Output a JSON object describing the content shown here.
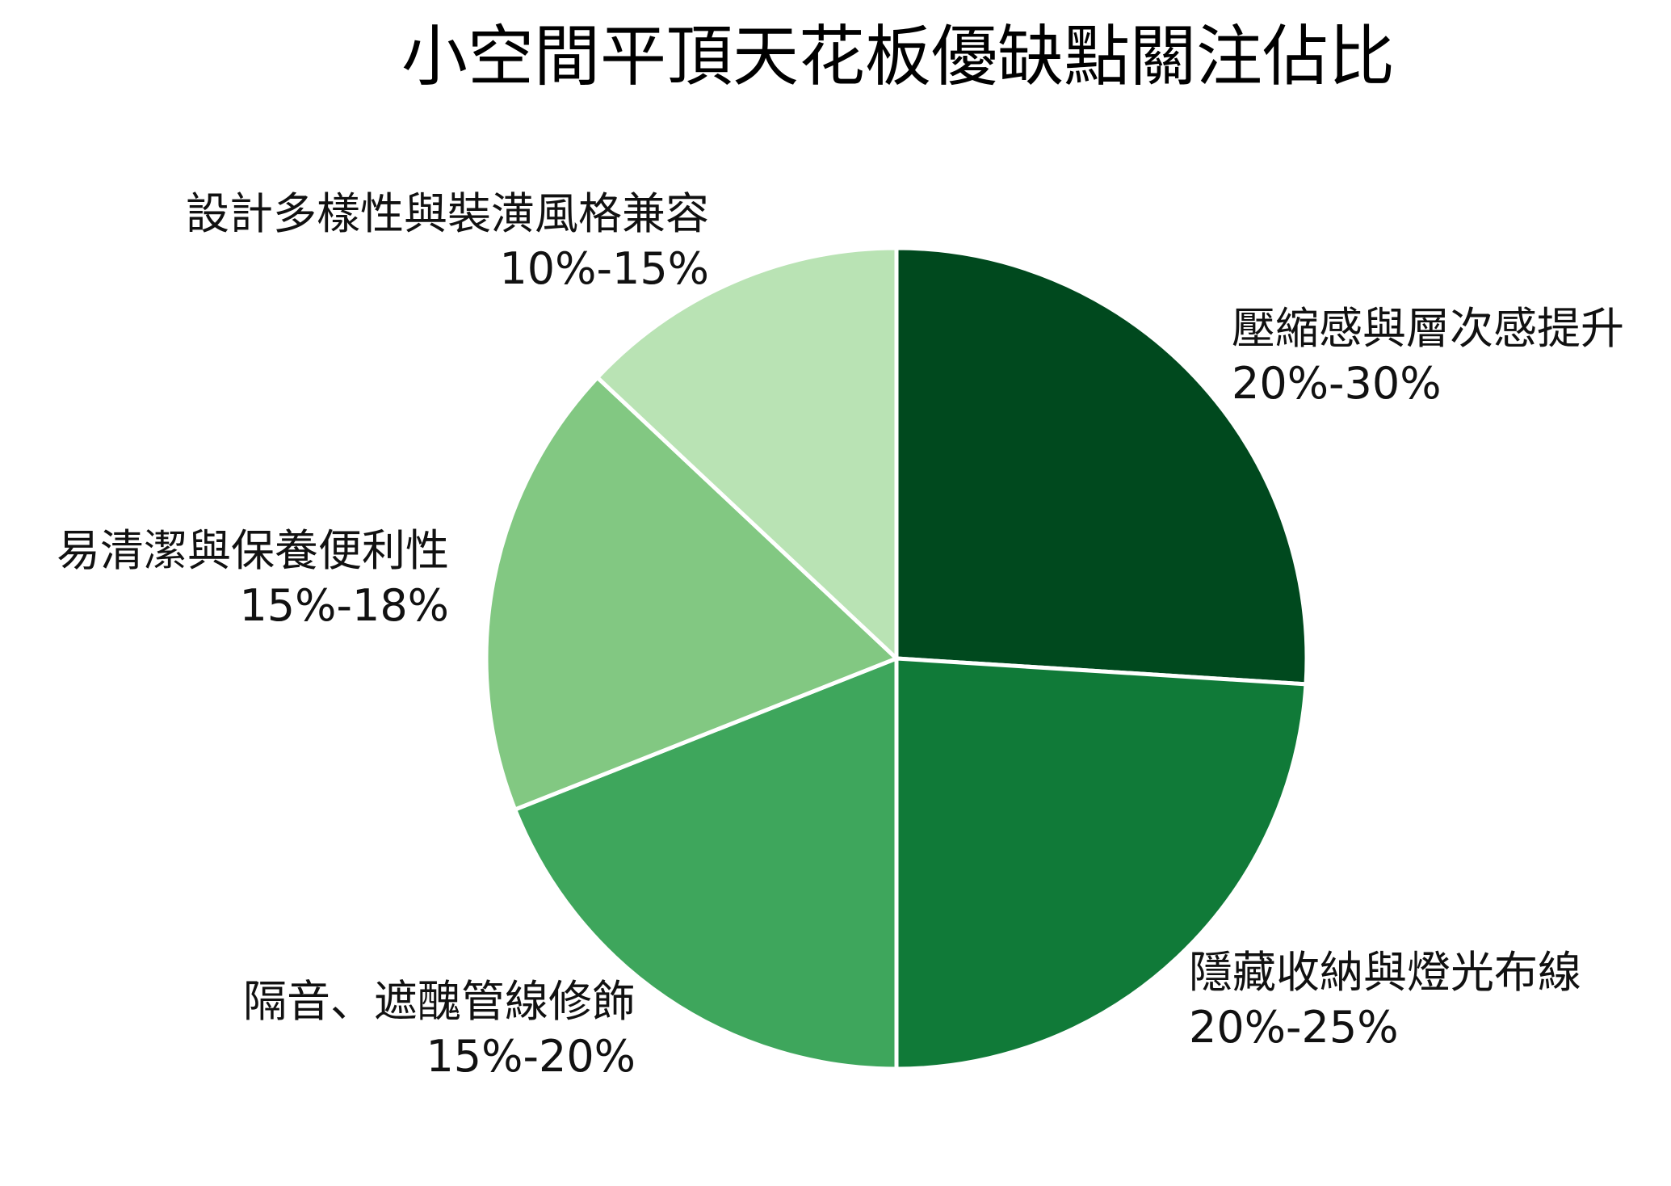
{
  "chart_data": {
    "type": "pie",
    "title": "小空間平頂天花板優缺點關注佔比",
    "slices": [
      {
        "label": "壓縮感與層次感提升",
        "range": "20%-30%",
        "value": 26,
        "color": "#00491e"
      },
      {
        "label": "隱藏收納與燈光布線",
        "range": "20%-25%",
        "value": 24,
        "color": "#107a38"
      },
      {
        "label": "隔音、遮醜管線修飾",
        "range": "15%-20%",
        "value": 19,
        "color": "#3ea65c"
      },
      {
        "label": "易清潔與保養便利性",
        "range": "15%-18%",
        "value": 18,
        "color": "#82c882"
      },
      {
        "label": "設計多樣性與裝潢風格兼容",
        "range": "10%-15%",
        "value": 13,
        "color": "#b9e3b4"
      }
    ],
    "start_angle_deg": 0,
    "direction": "clockwise",
    "legend": "none",
    "slice_border_color": "#ffffff"
  }
}
